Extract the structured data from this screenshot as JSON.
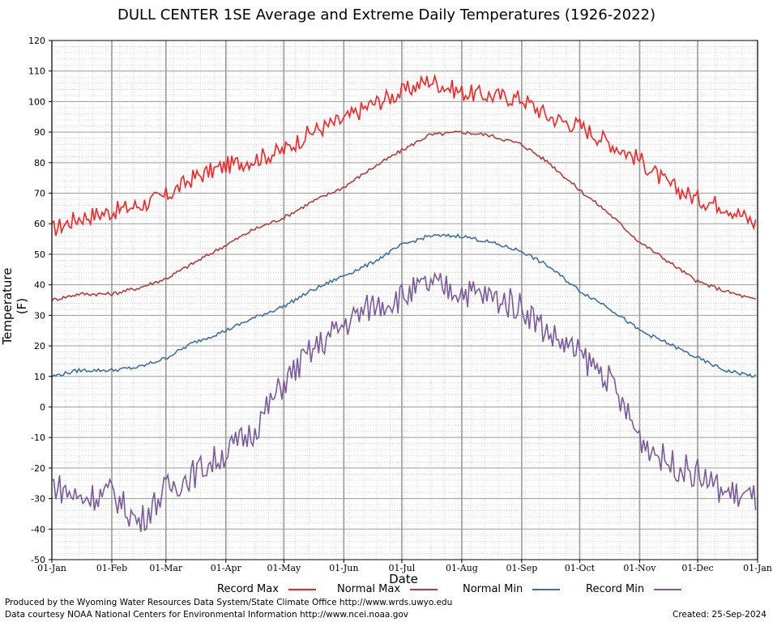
{
  "chart_data": {
    "type": "line",
    "title": "DULL CENTER 1SE Average and Extreme Daily Temperatures (1926-2022)",
    "xlabel": "Date",
    "ylabel": "Temperature (F)",
    "ylim": [
      -50,
      120
    ],
    "yticks": [
      "120",
      "110",
      "100",
      "90",
      "80",
      "70",
      "60",
      "50",
      "40",
      "30",
      "20",
      "10",
      "0",
      "-10",
      "-20",
      "-30",
      "-40",
      "-50"
    ],
    "xticks": [
      "01-Jan",
      "01-Feb",
      "01-Mar",
      "01-Apr",
      "01-May",
      "01-Jun",
      "01-Jul",
      "01-Aug",
      "01-Sep",
      "01-Oct",
      "01-Nov",
      "01-Dec",
      "01-Jan"
    ],
    "grid": true,
    "legend_position": "bottom",
    "series": [
      {
        "name": "Record Max",
        "color": "#ff2020",
        "x": [
          "01-Jan",
          "15-Jan",
          "01-Feb",
          "15-Feb",
          "01-Mar",
          "15-Mar",
          "01-Apr",
          "15-Apr",
          "01-May",
          "15-May",
          "01-Jun",
          "15-Jun",
          "01-Jul",
          "15-Jul",
          "01-Aug",
          "15-Aug",
          "01-Sep",
          "15-Sep",
          "01-Oct",
          "15-Oct",
          "01-Nov",
          "15-Nov",
          "01-Dec",
          "15-Dec",
          "31-Dec"
        ],
        "values": [
          58,
          62,
          64,
          66,
          69,
          75,
          79,
          81,
          84,
          90,
          94,
          99,
          103,
          107,
          103,
          102,
          101,
          95,
          92,
          87,
          81,
          73,
          68,
          66,
          60
        ]
      },
      {
        "name": "Normal Max",
        "color": "#b83a3a",
        "x": [
          "01-Jan",
          "15-Jan",
          "01-Feb",
          "15-Feb",
          "01-Mar",
          "15-Mar",
          "01-Apr",
          "15-Apr",
          "01-May",
          "15-May",
          "01-Jun",
          "15-Jun",
          "01-Jul",
          "15-Jul",
          "01-Aug",
          "15-Aug",
          "01-Sep",
          "15-Sep",
          "01-Oct",
          "15-Oct",
          "01-Nov",
          "15-Nov",
          "01-Dec",
          "15-Dec",
          "31-Dec"
        ],
        "values": [
          35,
          37,
          37,
          39,
          42,
          47,
          53,
          58,
          62,
          67,
          72,
          78,
          84,
          89,
          90,
          89,
          86,
          80,
          71,
          64,
          54,
          48,
          41,
          38,
          35
        ]
      },
      {
        "name": "Normal Min",
        "color": "#3d6fa8",
        "x": [
          "01-Jan",
          "15-Jan",
          "01-Feb",
          "15-Feb",
          "01-Mar",
          "15-Mar",
          "01-Apr",
          "15-Apr",
          "01-May",
          "15-May",
          "01-Jun",
          "15-Jun",
          "01-Jul",
          "15-Jul",
          "01-Aug",
          "15-Aug",
          "01-Sep",
          "15-Sep",
          "01-Oct",
          "15-Oct",
          "01-Nov",
          "15-Nov",
          "01-Dec",
          "15-Dec",
          "31-Dec"
        ],
        "values": [
          10,
          12,
          12,
          13,
          16,
          21,
          25,
          29,
          33,
          38,
          43,
          47,
          53,
          56,
          56,
          54,
          51,
          46,
          38,
          33,
          25,
          21,
          16,
          12,
          10
        ]
      },
      {
        "name": "Record Min",
        "color": "#7a5a9e",
        "x": [
          "01-Jan",
          "15-Jan",
          "01-Feb",
          "15-Feb",
          "01-Mar",
          "15-Mar",
          "01-Apr",
          "15-Apr",
          "01-May",
          "15-May",
          "01-Jun",
          "15-Jun",
          "01-Jul",
          "15-Jul",
          "01-Aug",
          "15-Aug",
          "01-Sep",
          "15-Sep",
          "01-Oct",
          "15-Oct",
          "01-Nov",
          "15-Nov",
          "01-Dec",
          "15-Dec",
          "31-Dec"
        ],
        "values": [
          -25,
          -30,
          -28,
          -38,
          -27,
          -22,
          -15,
          -8,
          8,
          18,
          27,
          33,
          36,
          40,
          38,
          36,
          33,
          24,
          17,
          10,
          -10,
          -18,
          -22,
          -28,
          -30
        ]
      }
    ]
  },
  "footer": {
    "produced_by": "Produced by the Wyoming Water Resources Data System/State Climate Office http://www.wrds.uwyo.edu",
    "courtesy": "Data courtesy NOAA National Centers for Environmental Information http://www.ncei.noaa.gov",
    "created": "Created: 25-Sep-2024"
  }
}
